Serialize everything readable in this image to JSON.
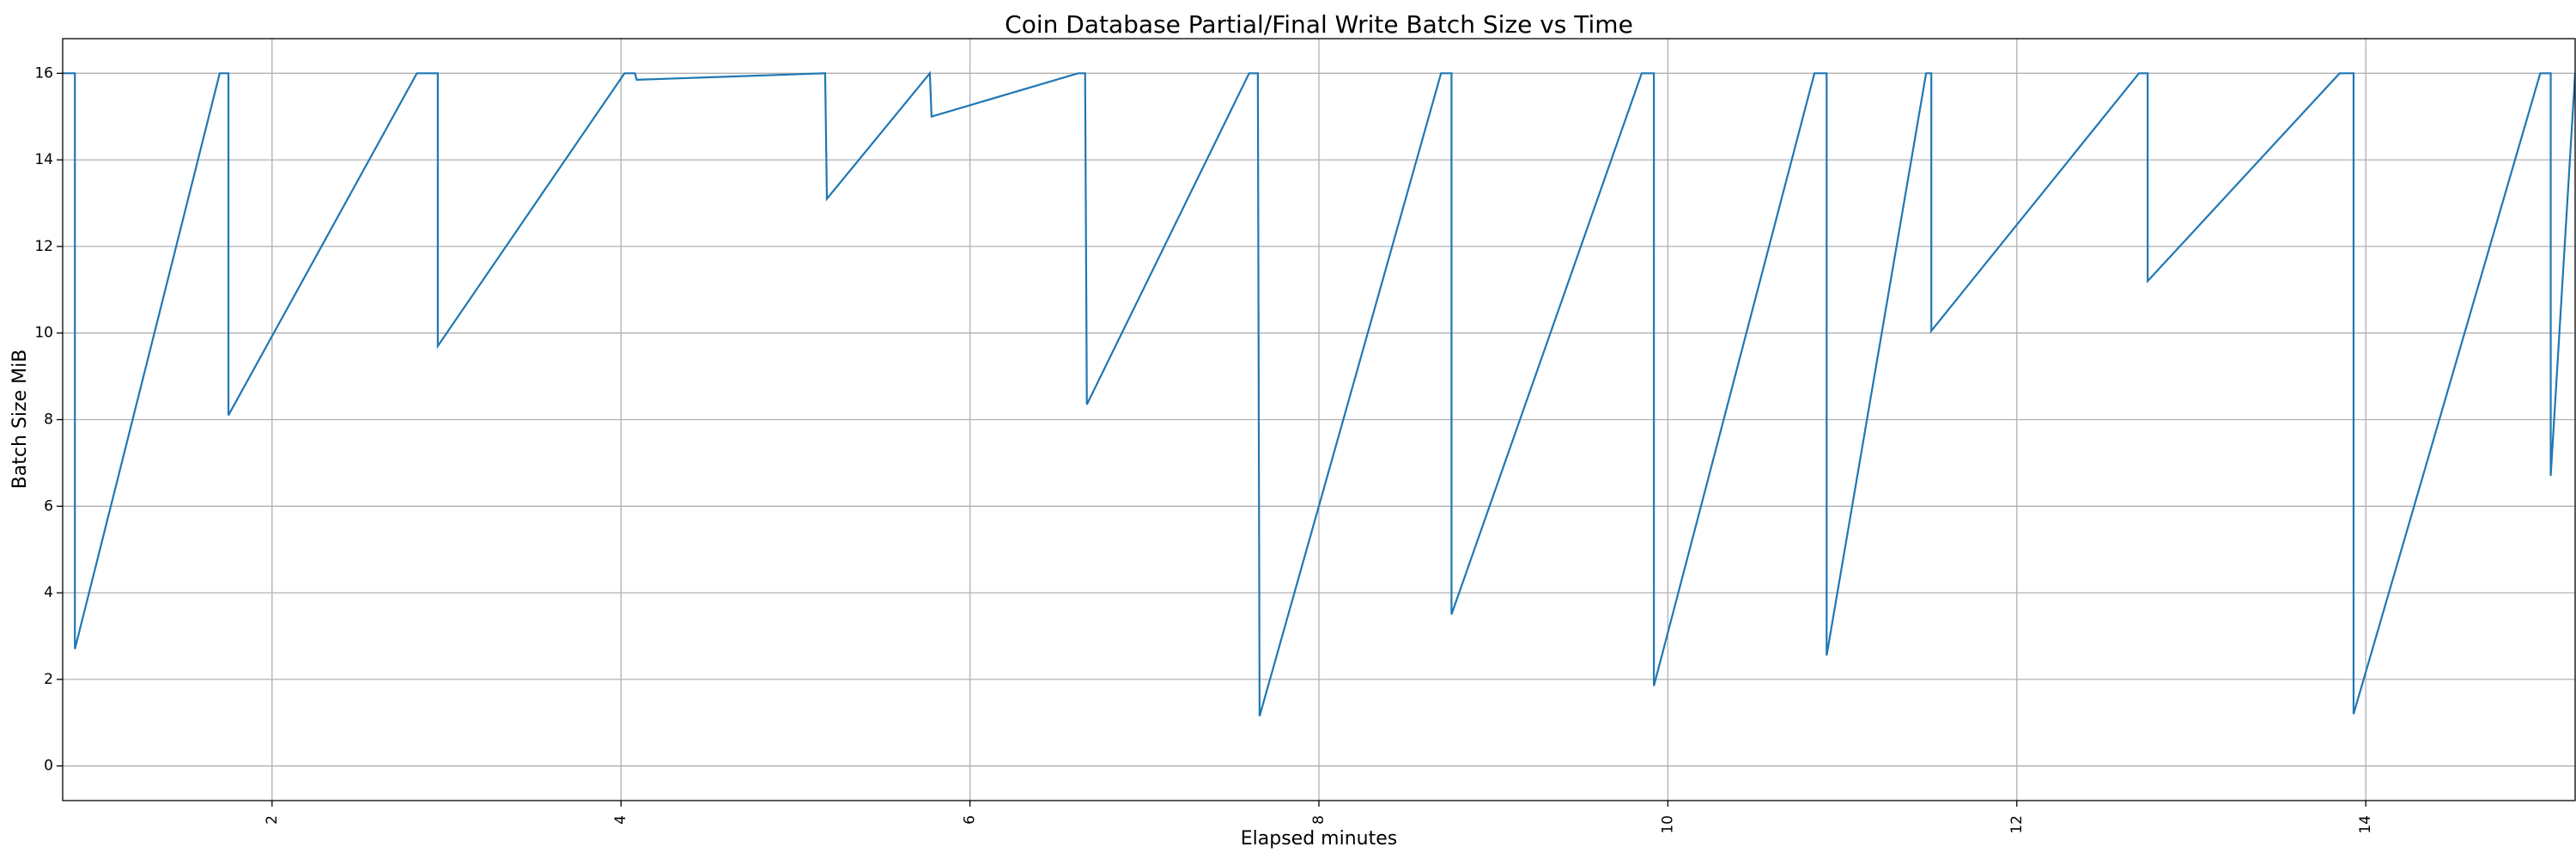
{
  "chart_data": {
    "type": "line",
    "title": "Coin Database Partial/Final Write Batch Size vs Time",
    "xlabel": "Elapsed minutes",
    "ylabel": "Batch Size MiB",
    "xlim": [
      0.8,
      15.2
    ],
    "ylim": [
      -0.8,
      16.8
    ],
    "xticks": [
      2,
      4,
      6,
      8,
      10,
      12,
      14
    ],
    "yticks": [
      0,
      2,
      4,
      6,
      8,
      10,
      12,
      14,
      16
    ],
    "grid": true,
    "series": [
      {
        "color": "#1f77b4",
        "x": [
          0.8,
          0.87,
          0.87,
          1.7,
          1.75,
          1.75,
          2.83,
          2.95,
          2.95,
          4.02,
          4.08,
          4.09,
          5.17,
          5.18,
          5.77,
          5.78,
          6.62,
          6.66,
          6.67,
          7.6,
          7.65,
          7.66,
          8.7,
          8.76,
          8.76,
          9.85,
          9.92,
          9.92,
          10.84,
          10.91,
          10.91,
          11.48,
          11.51,
          11.51,
          12.7,
          12.75,
          12.75,
          13.85,
          13.93,
          13.93,
          15.0,
          15.06,
          15.06,
          15.2
        ],
        "y": [
          16.0,
          16.0,
          2.7,
          16.0,
          16.0,
          8.1,
          16.0,
          16.0,
          9.7,
          16.0,
          16.0,
          15.85,
          16.0,
          13.1,
          16.0,
          15.0,
          16.0,
          16.0,
          8.35,
          16.0,
          16.0,
          1.15,
          16.0,
          16.0,
          3.5,
          16.0,
          16.0,
          1.85,
          16.0,
          16.0,
          2.55,
          16.0,
          16.0,
          10.05,
          16.0,
          16.0,
          11.2,
          16.0,
          16.0,
          1.2,
          16.0,
          16.0,
          6.7,
          16.0
        ]
      }
    ]
  }
}
